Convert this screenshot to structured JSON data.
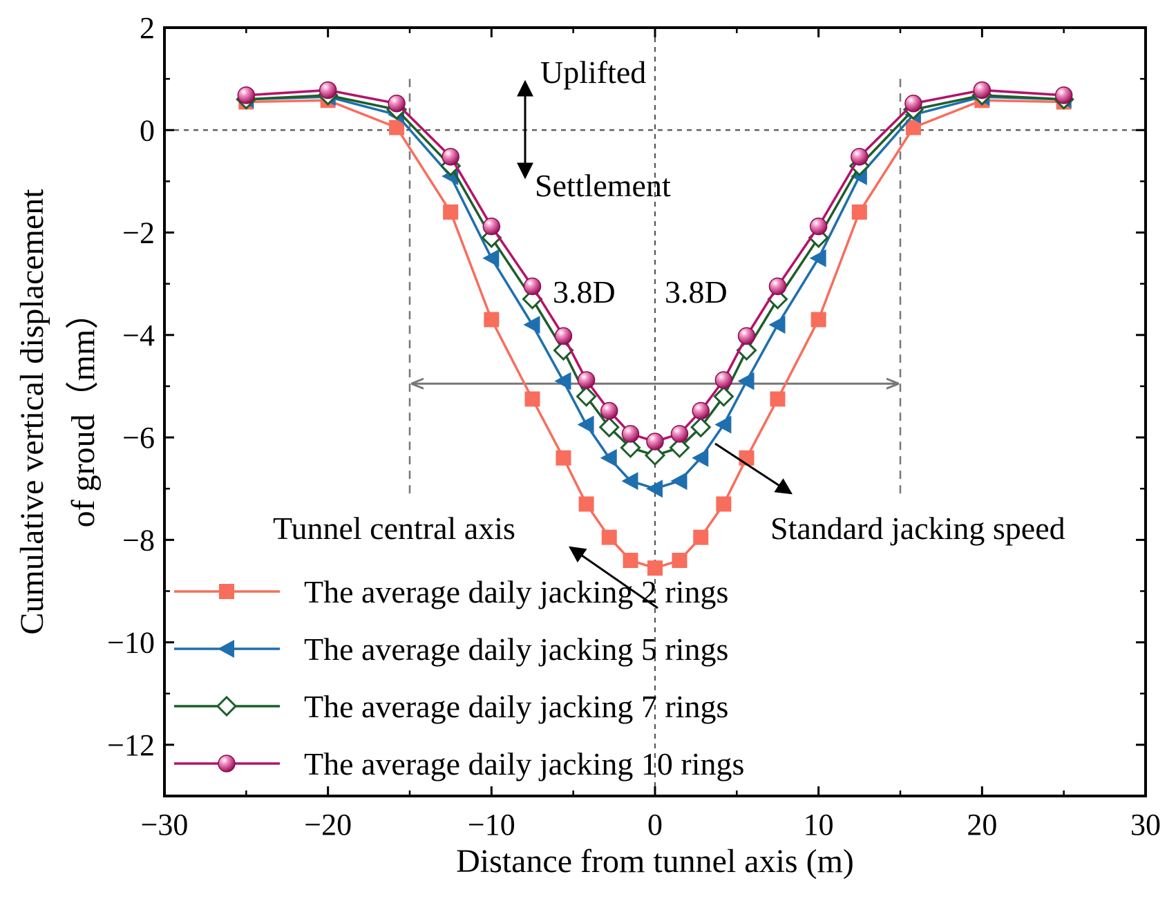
{
  "chart_data": {
    "type": "line",
    "title": "",
    "xlabel": "Distance from tunnel axis (m)",
    "ylabel_line1": "Cumulative vertical displacement",
    "ylabel_line2": "of groud（mm）",
    "xlim": [
      -30,
      30
    ],
    "ylim": [
      -13,
      2
    ],
    "xticks": [
      -30,
      -20,
      -10,
      0,
      10,
      20,
      30
    ],
    "yticks": [
      2,
      0,
      -2,
      -4,
      -6,
      -8,
      -10,
      -12
    ],
    "xtick_labels": [
      "−30",
      "−20",
      "−10",
      "0",
      "10",
      "20",
      "30"
    ],
    "ytick_labels": [
      "2",
      "0",
      "−2",
      "−4",
      "−6",
      "−8",
      "−10",
      "−12"
    ],
    "x": [
      -25,
      -20,
      -15.8,
      -12.5,
      -10,
      -7.5,
      -5.6,
      -4.2,
      -2.8,
      -1.5,
      0,
      1.5,
      2.8,
      4.2,
      5.6,
      7.5,
      10,
      12.5,
      15.8,
      20,
      25
    ],
    "series": [
      {
        "name": "The average daily jacking 2 rings",
        "color": "#f86d5c",
        "marker": "square",
        "values": [
          0.55,
          0.58,
          0.05,
          -1.6,
          -3.7,
          -5.25,
          -6.4,
          -7.3,
          -7.95,
          -8.4,
          -8.55,
          -8.4,
          -7.95,
          -7.3,
          -6.4,
          -5.25,
          -3.7,
          -1.6,
          0.05,
          0.58,
          0.55
        ]
      },
      {
        "name": "The average daily jacking 5 rings",
        "color": "#1e6faf",
        "marker": "triangle-left",
        "values": [
          0.6,
          0.65,
          0.3,
          -0.9,
          -2.5,
          -3.8,
          -4.9,
          -5.75,
          -6.4,
          -6.85,
          -7.0,
          -6.85,
          -6.4,
          -5.75,
          -4.9,
          -3.8,
          -2.5,
          -0.9,
          0.3,
          0.65,
          0.6
        ]
      },
      {
        "name": "The average daily jacking 7 rings",
        "color": "#1d5e2a",
        "marker": "diamond-open",
        "values": [
          0.6,
          0.68,
          0.4,
          -0.7,
          -2.1,
          -3.3,
          -4.3,
          -5.2,
          -5.8,
          -6.2,
          -6.35,
          -6.2,
          -5.8,
          -5.2,
          -4.3,
          -3.3,
          -2.1,
          -0.7,
          0.4,
          0.68,
          0.6
        ]
      },
      {
        "name": "The average daily jacking 10 rings",
        "color": "#b5126a",
        "marker": "sphere",
        "values": [
          0.68,
          0.78,
          0.52,
          -0.52,
          -1.88,
          -3.05,
          -4.02,
          -4.88,
          -5.48,
          -5.93,
          -6.08,
          -5.93,
          -5.48,
          -4.88,
          -4.02,
          -3.05,
          -1.88,
          -0.52,
          0.52,
          0.78,
          0.68
        ]
      }
    ],
    "legend_position": "lower-left",
    "annotations": {
      "uplifted": "Uplifted",
      "settlement": "Settlement",
      "left_width": "3.8D",
      "right_width": "3.8D",
      "central_axis": "Tunnel central axis",
      "standard_speed": "Standard jacking speed"
    },
    "reference_lines": {
      "zero_y": 0,
      "center_x": 0,
      "left_bound_x": -15,
      "right_bound_x": 15,
      "span_y": -4.95,
      "bound_bottom_y": -7.1
    }
  }
}
